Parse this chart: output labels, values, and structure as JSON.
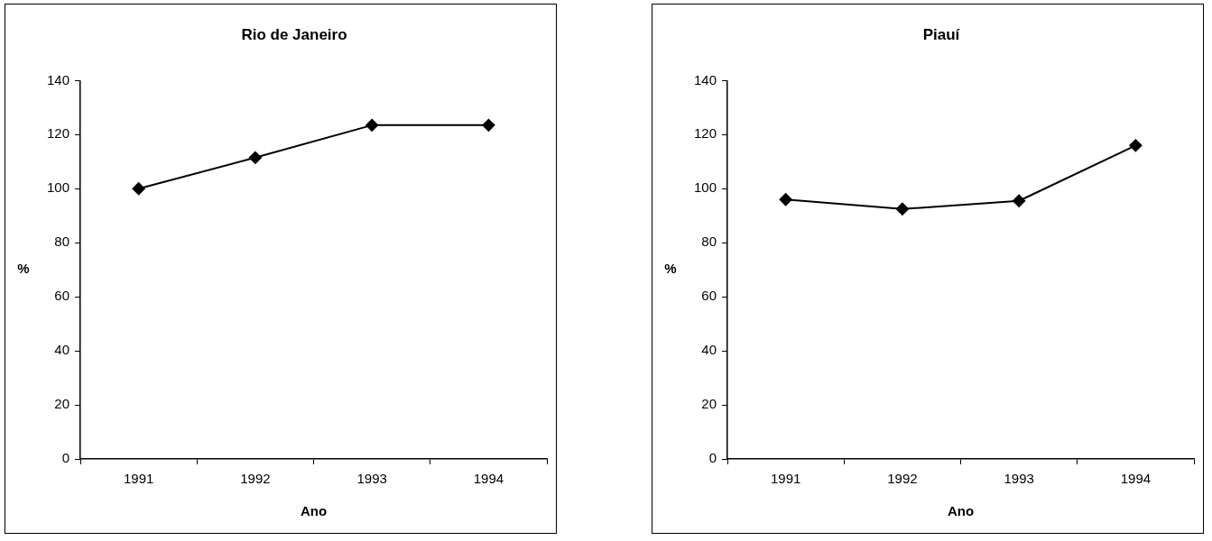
{
  "chart_data": [
    {
      "type": "line",
      "title": "Rio de Janeiro",
      "xlabel": "Ano",
      "ylabel": "%",
      "categories": [
        "1991",
        "1992",
        "1993",
        "1994"
      ],
      "series": [
        {
          "color": "#000000",
          "values": [
            100,
            111.5,
            123.5,
            123.5
          ]
        }
      ],
      "ylim": [
        0,
        140
      ],
      "yticks": [
        0,
        20,
        40,
        60,
        80,
        100,
        120,
        140
      ],
      "grid": false,
      "legend": false,
      "marker": "diamond",
      "line_style": "solid"
    },
    {
      "type": "line",
      "title": "Piauí",
      "xlabel": "Ano",
      "ylabel": "%",
      "categories": [
        "1991",
        "1992",
        "1993",
        "1994"
      ],
      "series": [
        {
          "color": "#000000",
          "values": [
            96,
            92.5,
            95.5,
            116
          ]
        }
      ],
      "ylim": [
        0,
        140
      ],
      "yticks": [
        0,
        20,
        40,
        60,
        80,
        100,
        120,
        140
      ],
      "grid": false,
      "legend": false,
      "marker": "diamond",
      "line_style": "solid"
    }
  ]
}
